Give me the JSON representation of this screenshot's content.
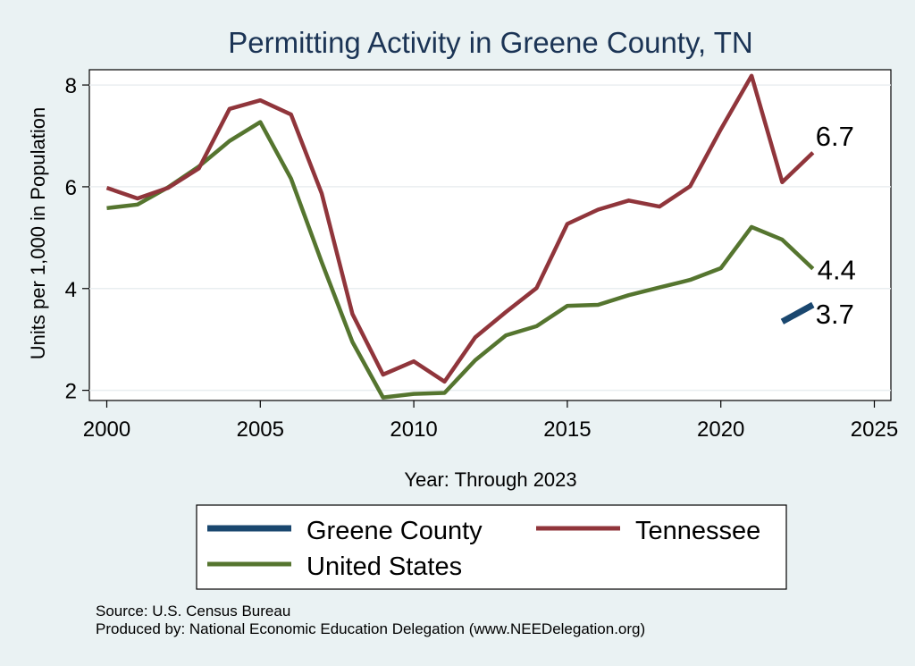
{
  "chart_data": {
    "type": "line",
    "title": "Permitting Activity in Greene County, TN",
    "xlabel": "Year: Through 2023",
    "ylabel": "Units per 1,000 in Population",
    "xlim": [
      2000,
      2025
    ],
    "ylim": [
      1.8,
      8.3
    ],
    "xticks": [
      2000,
      2005,
      2010,
      2015,
      2020,
      2025
    ],
    "yticks": [
      2,
      4,
      6,
      8
    ],
    "grid": true,
    "legend_position": "bottom",
    "series": [
      {
        "name": "Greene County",
        "color": "#1a476f",
        "x": [
          2022,
          2023
        ],
        "values": [
          3.35,
          3.68
        ],
        "end_label": "3.7"
      },
      {
        "name": "Tennessee",
        "color": "#90353b",
        "x": [
          2000,
          2001,
          2002,
          2003,
          2004,
          2005,
          2006,
          2007,
          2008,
          2009,
          2010,
          2011,
          2012,
          2013,
          2014,
          2015,
          2016,
          2017,
          2018,
          2019,
          2020,
          2021,
          2022,
          2023
        ],
        "values": [
          5.98,
          5.77,
          5.98,
          6.36,
          7.53,
          7.7,
          7.42,
          5.87,
          3.5,
          2.31,
          2.57,
          2.17,
          3.04,
          3.54,
          4.01,
          5.27,
          5.55,
          5.73,
          5.61,
          6.01,
          7.13,
          8.18,
          6.09,
          6.67
        ],
        "end_label": "6.7"
      },
      {
        "name": "United States",
        "color": "#55752f",
        "x": [
          2000,
          2001,
          2002,
          2003,
          2004,
          2005,
          2006,
          2007,
          2008,
          2009,
          2010,
          2011,
          2012,
          2013,
          2014,
          2015,
          2016,
          2017,
          2018,
          2019,
          2020,
          2021,
          2022,
          2023
        ],
        "values": [
          5.58,
          5.65,
          5.99,
          6.4,
          6.9,
          7.27,
          6.16,
          4.52,
          2.95,
          1.86,
          1.93,
          1.95,
          2.59,
          3.08,
          3.26,
          3.66,
          3.68,
          3.87,
          4.02,
          4.17,
          4.4,
          5.21,
          4.96,
          4.39
        ],
        "end_label": "4.4"
      }
    ]
  },
  "footer": {
    "source": "Source: U.S. Census Bureau",
    "producer": "Produced by: National Economic Education Delegation (www.NEEDelegation.org)"
  }
}
